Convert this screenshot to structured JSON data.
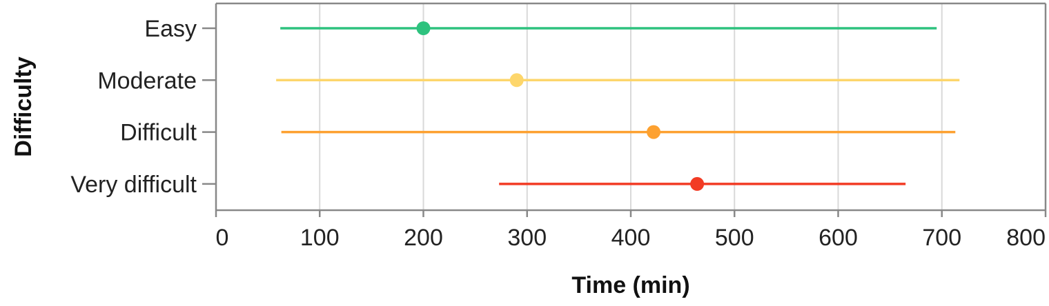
{
  "chart_data": {
    "type": "scatter",
    "title": "",
    "xlabel": "Time (min)",
    "ylabel": "Difficulty",
    "xlim": [
      0,
      800
    ],
    "xticks": [
      0,
      100,
      200,
      300,
      400,
      500,
      600,
      700,
      800
    ],
    "categories": [
      "Easy",
      "Moderate",
      "Difficult",
      "Very difficult"
    ],
    "grid": "vertical",
    "series": [
      {
        "category": "Easy",
        "point": 200,
        "min": 62,
        "max": 695,
        "color": "#2ec27e"
      },
      {
        "category": "Moderate",
        "point": 290,
        "min": 58,
        "max": 717,
        "color": "#fdd66b"
      },
      {
        "category": "Difficult",
        "point": 422,
        "min": 63,
        "max": 713,
        "color": "#fda130"
      },
      {
        "category": "Very difficult",
        "point": 464,
        "min": 273,
        "max": 665,
        "color": "#f23b24"
      }
    ]
  }
}
